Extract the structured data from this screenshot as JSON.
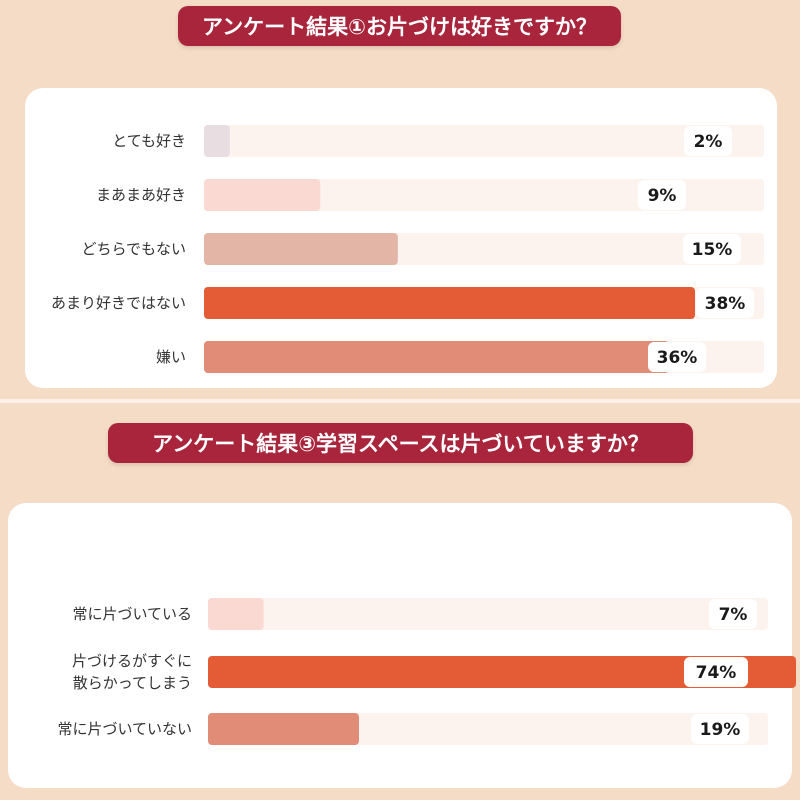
{
  "colors": {
    "background": "#f5dcc6",
    "title_bg": "#a8253c",
    "track": "#fcf3ef"
  },
  "chart_data": [
    {
      "type": "bar",
      "orientation": "horizontal",
      "title": "アンケート結果①お片づけは好きですか？",
      "categories": [
        "とても好き",
        "まあまあ好き",
        "どちらでもない",
        "あまり好きではない",
        "嫌い"
      ],
      "values": [
        2,
        9,
        15,
        38,
        36
      ],
      "value_labels": [
        "2%",
        "9%",
        "15%",
        "38%",
        "36%"
      ],
      "bar_colors": [
        "#e8dde0",
        "#fbd9d3",
        "#e3b5a6",
        "#e45c35",
        "#e08c77"
      ],
      "unit": "%",
      "xlim": [
        0,
        38
      ]
    },
    {
      "type": "bar",
      "orientation": "horizontal",
      "title": "アンケート結果③学習スペースは片づいていますか？",
      "categories": [
        [
          "常に片づいている"
        ],
        [
          "片づけるがすぐに",
          "散らかってしまう"
        ],
        [
          "常に片づいていない"
        ]
      ],
      "values": [
        7,
        74,
        19
      ],
      "value_labels": [
        "7%",
        "74%",
        "19%"
      ],
      "bar_colors": [
        "#fbd9d3",
        "#e45c35",
        "#e08c77"
      ],
      "unit": "%",
      "xlim": [
        0,
        74
      ]
    }
  ]
}
